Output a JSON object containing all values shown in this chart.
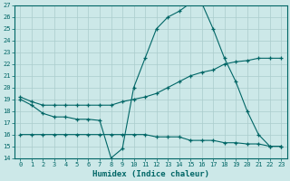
{
  "xlabel": "Humidex (Indice chaleur)",
  "bg_color": "#cce8e8",
  "line_color": "#006666",
  "grid_color": "#aacccc",
  "xlim": [
    -0.5,
    23.5
  ],
  "ylim": [
    14,
    27
  ],
  "yticks": [
    14,
    15,
    16,
    17,
    18,
    19,
    20,
    21,
    22,
    23,
    24,
    25,
    26,
    27
  ],
  "xticks": [
    0,
    1,
    2,
    3,
    4,
    5,
    6,
    7,
    8,
    9,
    10,
    11,
    12,
    13,
    14,
    15,
    16,
    17,
    18,
    19,
    20,
    21,
    22,
    23
  ],
  "line1_x": [
    0,
    1,
    2,
    3,
    4,
    5,
    6,
    7,
    8,
    9,
    10,
    11,
    12,
    13,
    14,
    15,
    16,
    17,
    18,
    19,
    20,
    21,
    22,
    23
  ],
  "line1_y": [
    19.0,
    18.5,
    17.8,
    17.5,
    17.5,
    17.3,
    17.3,
    17.2,
    14.0,
    14.8,
    20.0,
    22.5,
    25.0,
    26.0,
    26.5,
    27.2,
    27.2,
    25.0,
    22.5,
    20.5,
    18.0,
    16.0,
    15.0,
    15.0
  ],
  "line2_x": [
    0,
    1,
    2,
    3,
    4,
    5,
    6,
    7,
    8,
    9,
    10,
    11,
    12,
    13,
    14,
    15,
    16,
    17,
    18,
    19,
    20,
    21,
    22,
    23
  ],
  "line2_y": [
    19.2,
    18.8,
    18.5,
    18.5,
    18.5,
    18.5,
    18.5,
    18.5,
    18.5,
    18.8,
    19.0,
    19.2,
    19.5,
    20.0,
    20.5,
    21.0,
    21.3,
    21.5,
    22.0,
    22.2,
    22.3,
    22.5,
    22.5,
    22.5
  ],
  "line3_x": [
    0,
    1,
    2,
    3,
    4,
    5,
    6,
    7,
    8,
    9,
    10,
    11,
    12,
    13,
    14,
    15,
    16,
    17,
    18,
    19,
    20,
    21,
    22,
    23
  ],
  "line3_y": [
    16.0,
    16.0,
    16.0,
    16.0,
    16.0,
    16.0,
    16.0,
    16.0,
    16.0,
    16.0,
    16.0,
    16.0,
    15.8,
    15.8,
    15.8,
    15.5,
    15.5,
    15.5,
    15.3,
    15.3,
    15.2,
    15.2,
    15.0,
    15.0
  ]
}
